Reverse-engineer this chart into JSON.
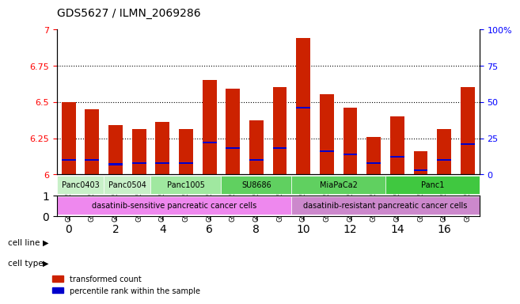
{
  "title": "GDS5627 / ILMN_2069286",
  "samples": [
    "GSM1435684",
    "GSM1435685",
    "GSM1435686",
    "GSM1435687",
    "GSM1435688",
    "GSM1435689",
    "GSM1435690",
    "GSM1435691",
    "GSM1435692",
    "GSM1435693",
    "GSM1435694",
    "GSM1435695",
    "GSM1435696",
    "GSM1435697",
    "GSM1435698",
    "GSM1435699",
    "GSM1435700",
    "GSM1435701"
  ],
  "transformed_counts": [
    6.5,
    6.45,
    6.34,
    6.31,
    6.36,
    6.31,
    6.65,
    6.59,
    6.37,
    6.6,
    6.94,
    6.55,
    6.46,
    6.26,
    6.4,
    6.16,
    6.31,
    6.6
  ],
  "percentile_ranks": [
    10,
    10,
    7,
    8,
    8,
    8,
    22,
    18,
    10,
    18,
    46,
    16,
    14,
    8,
    12,
    3,
    10,
    21
  ],
  "cell_lines": [
    {
      "name": "Panc0403",
      "start": 0,
      "end": 2,
      "color": "#ccffcc"
    },
    {
      "name": "Panc0504",
      "start": 2,
      "end": 4,
      "color": "#ccffcc"
    },
    {
      "name": "Panc1005",
      "start": 4,
      "end": 6,
      "color": "#aaffaa"
    },
    {
      "name": "SU8686",
      "start": 6,
      "end": 9,
      "color": "#55ee55"
    },
    {
      "name": "MiaPaCa2",
      "start": 9,
      "end": 13,
      "color": "#55ee55"
    },
    {
      "name": "Panc1",
      "start": 13,
      "end": 18,
      "color": "#44dd44"
    }
  ],
  "cell_line_groups": [
    {
      "name": "Panc0403",
      "start": 0,
      "end": 2,
      "color": "#ccffcc"
    },
    {
      "name": "Panc0504",
      "start": 2,
      "end": 4,
      "color": "#ccffcc"
    },
    {
      "name": "Panc1005",
      "start": 4,
      "end": 6,
      "color": "#aaffaa"
    },
    {
      "name": "SU8686",
      "start": 6,
      "end": 9,
      "color": "#55ee55"
    },
    {
      "name": "MiaPaCa2",
      "start": 9,
      "end": 13,
      "color": "#55ee55"
    },
    {
      "name": "Panc1",
      "start": 13,
      "end": 18,
      "color": "#44dd44"
    }
  ],
  "cell_type_groups": [
    {
      "name": "dasatinib-sensitive pancreatic cancer cells",
      "start": 0,
      "end": 9,
      "color": "#ff88ff"
    },
    {
      "name": "dasatinib-resistant pancreatic cancer cells",
      "start": 9,
      "end": 18,
      "color": "#dd88dd"
    }
  ],
  "ymin": 6.0,
  "ymax": 7.0,
  "bar_color": "#cc2200",
  "percentile_color": "#0000cc",
  "grid_values": [
    6.25,
    6.5,
    6.75
  ],
  "right_axis_ticks": [
    0,
    25,
    50,
    75,
    100
  ],
  "right_axis_labels": [
    "0",
    "25",
    "50",
    "75",
    "100%"
  ]
}
